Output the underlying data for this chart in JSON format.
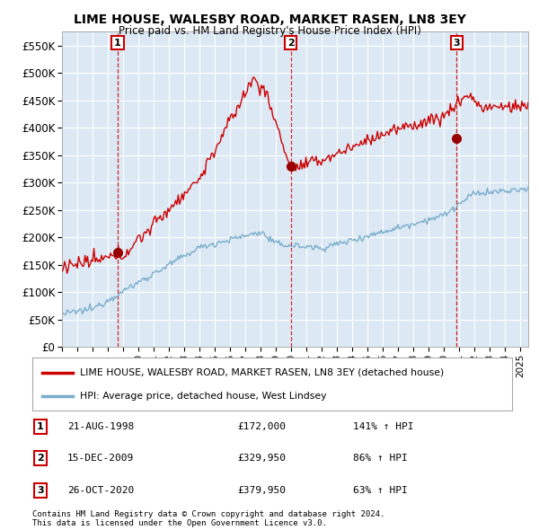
{
  "title": "LIME HOUSE, WALESBY ROAD, MARKET RASEN, LN8 3EY",
  "subtitle": "Price paid vs. HM Land Registry's House Price Index (HPI)",
  "ylim": [
    0,
    575000
  ],
  "yticks": [
    0,
    50000,
    100000,
    150000,
    200000,
    250000,
    300000,
    350000,
    400000,
    450000,
    500000,
    550000
  ],
  "line1_color": "#cc0000",
  "line2_color": "#7aadcc",
  "background_color": "#ffffff",
  "chart_bg_color": "#dce9f5",
  "grid_color": "#ffffff",
  "legend_line1": "LIME HOUSE, WALESBY ROAD, MARKET RASEN, LN8 3EY (detached house)",
  "legend_line2": "HPI: Average price, detached house, West Lindsey",
  "transactions": [
    {
      "label": "1",
      "date": "21-AUG-1998",
      "price": 172000,
      "price_str": "£172,000",
      "pct": "141%",
      "dir": "↑",
      "x_year": 1998.64
    },
    {
      "label": "2",
      "date": "15-DEC-2009",
      "price": 329950,
      "price_str": "£329,950",
      "pct": "86%",
      "dir": "↑",
      "x_year": 2009.96
    },
    {
      "label": "3",
      "date": "26-OCT-2020",
      "price": 379950,
      "price_str": "£379,950",
      "pct": "63%",
      "dir": "↑",
      "x_year": 2020.82
    }
  ],
  "footer1": "Contains HM Land Registry data © Crown copyright and database right 2024.",
  "footer2": "This data is licensed under the Open Government Licence v3.0.",
  "xlim_start": 1995,
  "xlim_end": 2025.5
}
